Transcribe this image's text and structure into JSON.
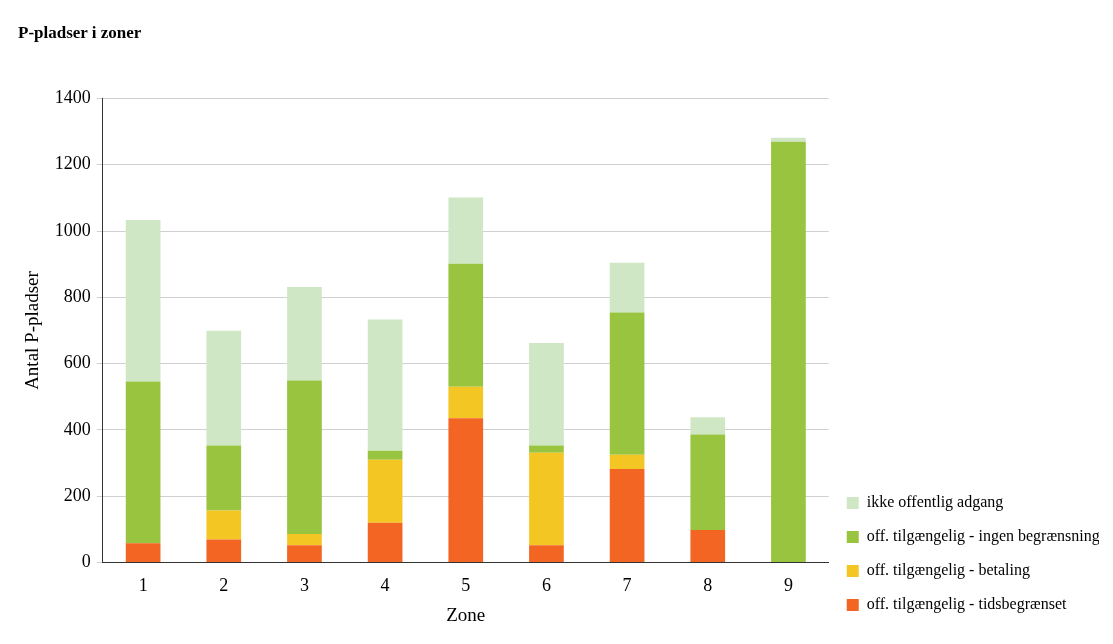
{
  "chart_data": {
    "type": "bar",
    "title": "P-pladser i zoner",
    "xlabel": "Zone",
    "ylabel": "Antal P-pladser",
    "categories": [
      "1",
      "2",
      "3",
      "4",
      "5",
      "6",
      "7",
      "8",
      "9"
    ],
    "stacked": true,
    "ylim": [
      0,
      1400
    ],
    "yticks": [
      0,
      200,
      400,
      600,
      800,
      1000,
      1200,
      1400
    ],
    "grid": "y",
    "legend": "right",
    "series": [
      {
        "name": "off. tilgængelig - tidsbegrænset",
        "color": "#f26522",
        "values": [
          58,
          70,
          52,
          120,
          435,
          52,
          282,
          98,
          0
        ]
      },
      {
        "name": "off. tilgængelig - betaling",
        "color": "#f4c623",
        "values": [
          0,
          87,
          34,
          190,
          95,
          279,
          43,
          0,
          0
        ]
      },
      {
        "name": "off. tilgængelig - ingen begrænsning",
        "color": "#98c43f",
        "values": [
          488,
          196,
          463,
          27,
          371,
          22,
          429,
          288,
          1269
        ]
      },
      {
        "name": "ikke offentlig adgang",
        "color": "#cfe7c5",
        "values": [
          487,
          346,
          282,
          396,
          200,
          309,
          150,
          52,
          12
        ]
      }
    ]
  }
}
